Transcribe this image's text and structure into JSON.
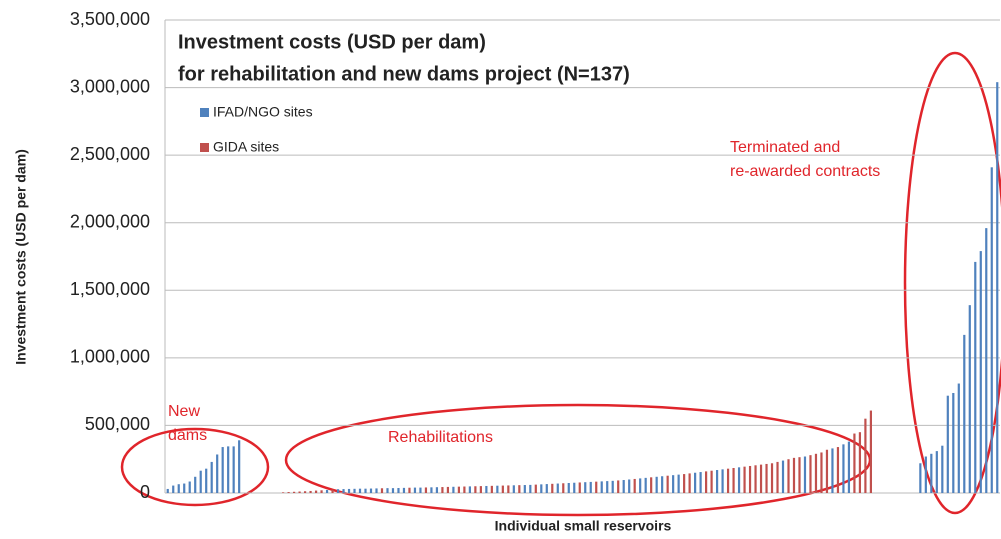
{
  "chart_data": {
    "type": "bar",
    "title": [
      "Investment costs (USD per dam)",
      "for rehabilitation and new dams project  (N=137)"
    ],
    "x_label": "Individual small reservoirs",
    "y_label": "Investment costs (USD per dam)",
    "annotations": [
      [
        "New",
        "dams"
      ],
      [
        "Rehabilitations"
      ],
      [
        "Terminated and",
        "re-awarded contracts"
      ]
    ],
    "categories": [
      null,
      null,
      null,
      null,
      null,
      null,
      null,
      null,
      null,
      null,
      null,
      null,
      null,
      null,
      null,
      null,
      null,
      null,
      null,
      null,
      null,
      null,
      null,
      null,
      null,
      null,
      null,
      null,
      null,
      null,
      null,
      null,
      null,
      null,
      null,
      null,
      null,
      null,
      null,
      null,
      null,
      null,
      null,
      null,
      null,
      null,
      null,
      null,
      null,
      null,
      null,
      null,
      null,
      null,
      null,
      null,
      null,
      null,
      null,
      null,
      null,
      null,
      null,
      null,
      null,
      null,
      null,
      null,
      null,
      null,
      null,
      null,
      null,
      null,
      null,
      null,
      null,
      null,
      null,
      null,
      null,
      null,
      null,
      null,
      null,
      null,
      null,
      null,
      null,
      null,
      null,
      null,
      null,
      null,
      null,
      null,
      null,
      null,
      null,
      null,
      null,
      null,
      null,
      null,
      null,
      null,
      null,
      null,
      null,
      null,
      null,
      null,
      null,
      null,
      null,
      null,
      null,
      null,
      null,
      null,
      null,
      null,
      null,
      null,
      null,
      null,
      null,
      null,
      null,
      null,
      null,
      null,
      null,
      null,
      null,
      null,
      null,
      null,
      null,
      null,
      null,
      null,
      null,
      null,
      null,
      null,
      null,
      null,
      null,
      null,
      null,
      null
    ],
    "series": [
      {
        "name": "IFAD/NGO sites",
        "color": "#4f81bd",
        "values": [
          30000,
          55000,
          65000,
          70000,
          85000,
          120000,
          165000,
          180000,
          230000,
          285000,
          340000,
          345000,
          345000,
          390000,
          null,
          null,
          null,
          null,
          null,
          null,
          null,
          null,
          null,
          null,
          null,
          null,
          null,
          null,
          null,
          22000,
          null,
          28000,
          29000,
          30000,
          31000,
          32000,
          32000,
          33000,
          34000,
          null,
          36000,
          36000,
          37000,
          38000,
          null,
          40000,
          40000,
          null,
          42000,
          43000,
          null,
          null,
          46000,
          null,
          null,
          49000,
          null,
          null,
          52000,
          null,
          54000,
          null,
          null,
          57000,
          null,
          59000,
          60000,
          null,
          64000,
          66000,
          null,
          70000,
          null,
          74000,
          76000,
          null,
          80000,
          82000,
          null,
          86000,
          88000,
          90000,
          null,
          96000,
          100000,
          null,
          108000,
          112000,
          null,
          120000,
          124000,
          null,
          132000,
          136000,
          null,
          null,
          150000,
          155000,
          null,
          null,
          170000,
          175000,
          null,
          null,
          190000,
          null,
          null,
          null,
          null,
          null,
          null,
          null,
          240000,
          null,
          null,
          null,
          270000,
          null,
          null,
          null,
          null,
          330000,
          null,
          360000,
          380000,
          null,
          null,
          null,
          null,
          null,
          null,
          null,
          null,
          null,
          null,
          null,
          null,
          220000,
          270000,
          290000,
          310000,
          350000,
          720000,
          740000,
          810000,
          1170000,
          1390000,
          1710000,
          1790000,
          1960000,
          2410000,
          3040000
        ]
      },
      {
        "name": "GIDA sites",
        "color": "#c0504d",
        "values": [
          null,
          null,
          null,
          null,
          null,
          null,
          null,
          null,
          null,
          null,
          null,
          null,
          null,
          null,
          null,
          null,
          null,
          null,
          null,
          null,
          null,
          5000,
          7000,
          9000,
          11000,
          13000,
          15000,
          18000,
          20000,
          null,
          25000,
          null,
          null,
          null,
          null,
          null,
          null,
          null,
          null,
          35000,
          null,
          null,
          null,
          null,
          39000,
          null,
          null,
          41000,
          null,
          null,
          44000,
          45000,
          null,
          47000,
          48000,
          null,
          50000,
          51000,
          null,
          53000,
          null,
          55000,
          56000,
          null,
          58000,
          null,
          null,
          62000,
          null,
          null,
          68000,
          null,
          72000,
          null,
          null,
          78000,
          null,
          null,
          84000,
          null,
          null,
          null,
          93000,
          null,
          null,
          104000,
          null,
          null,
          116000,
          null,
          null,
          128000,
          null,
          null,
          140000,
          145000,
          null,
          null,
          160000,
          165000,
          null,
          null,
          180000,
          185000,
          null,
          195000,
          200000,
          205000,
          210000,
          215000,
          220000,
          230000,
          null,
          250000,
          260000,
          265000,
          null,
          280000,
          290000,
          300000,
          320000,
          null,
          340000,
          null,
          null,
          440000,
          450000,
          550000,
          610000,
          null,
          null,
          null,
          null,
          null,
          null,
          null,
          null,
          null,
          null,
          null,
          null,
          null,
          null,
          null,
          null,
          null,
          null,
          null,
          null,
          null,
          null,
          null
        ]
      }
    ],
    "ylim": [
      0,
      3500000
    ],
    "yticks": [
      0,
      {
        "value": 500000,
        "label": "500,000"
      },
      {
        "value": 1000000,
        "label": "1,000,000"
      },
      {
        "value": 1500000,
        "label": "1,500,000"
      },
      {
        "value": 2000000,
        "label": "2,000,000"
      },
      {
        "value": 2500000,
        "label": "2,500,000"
      },
      {
        "value": 3000000,
        "label": "3,000,000"
      },
      {
        "value": 3500000,
        "label": "3,500,000"
      }
    ],
    "grid": true,
    "legend": "upper left"
  }
}
